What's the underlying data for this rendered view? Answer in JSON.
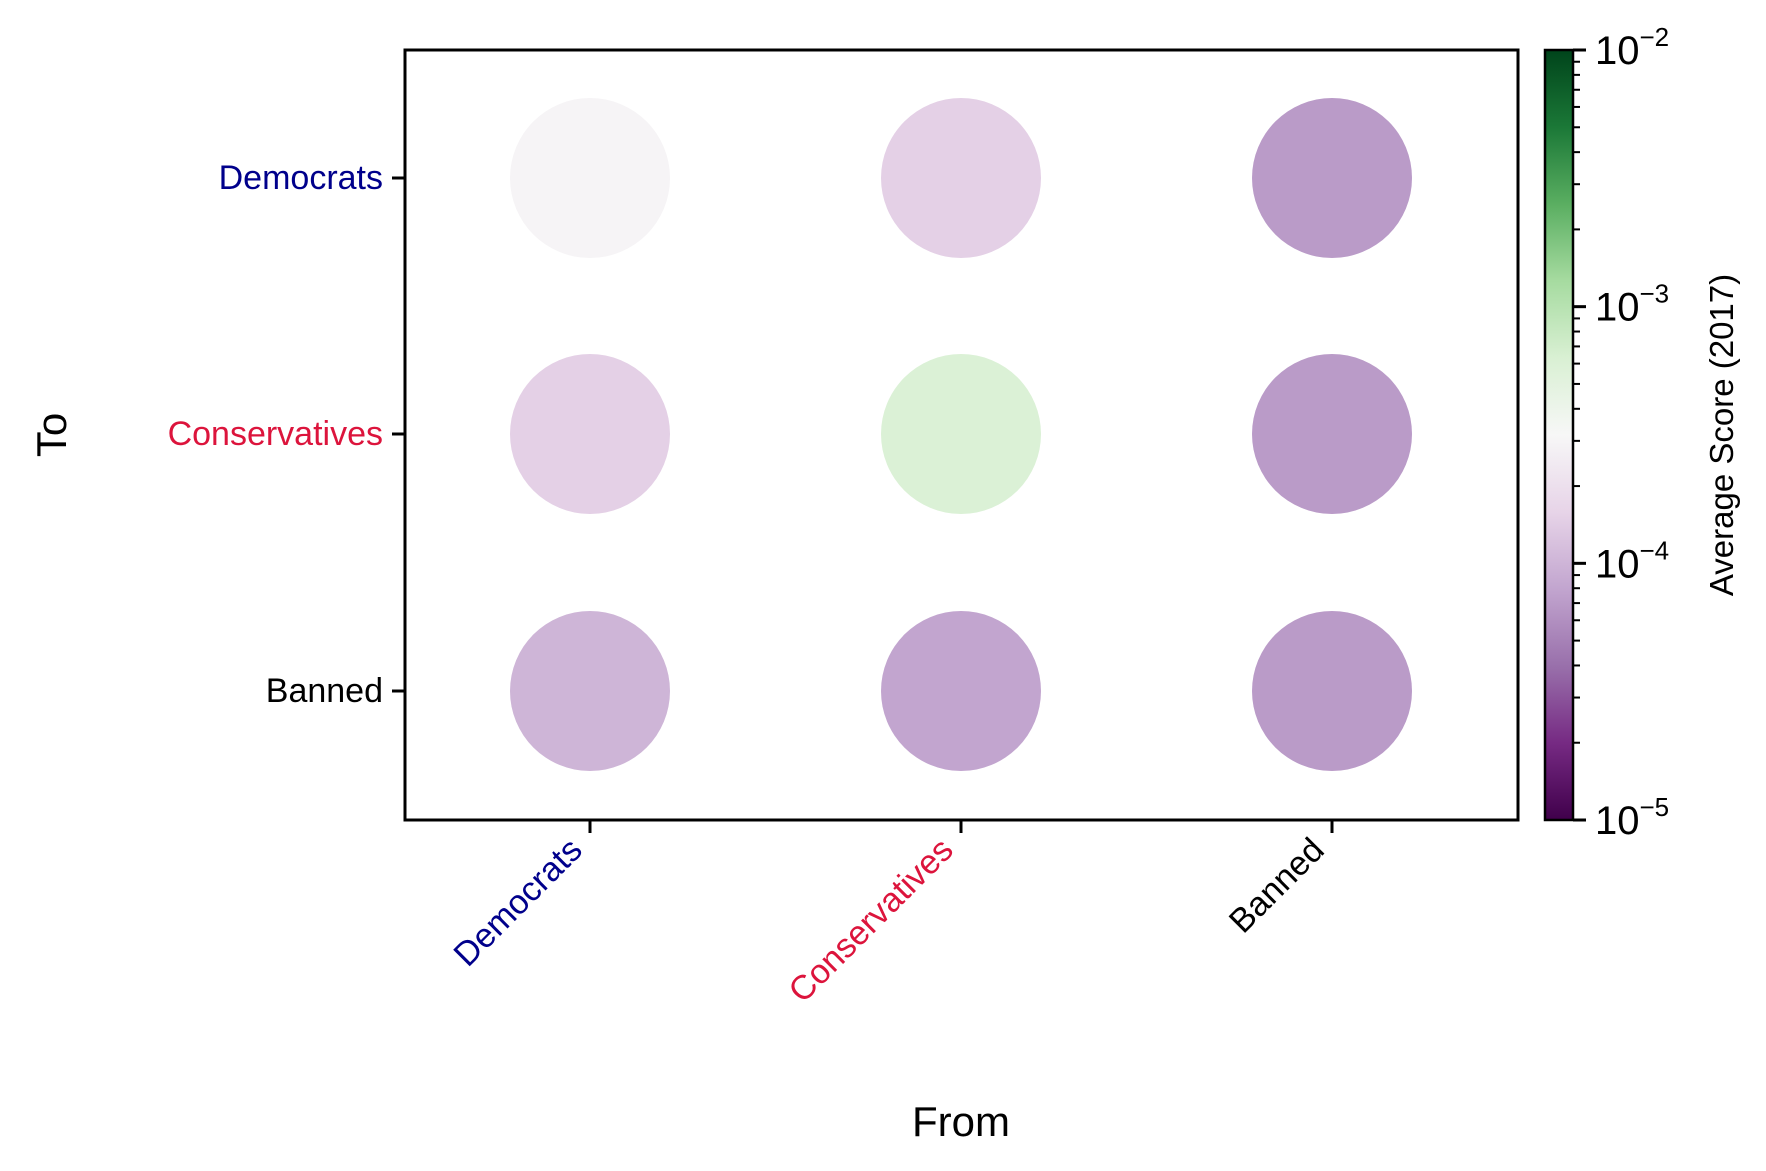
{
  "chart_data": {
    "type": "heatmap",
    "title": "",
    "xlabel": "From",
    "ylabel": "To",
    "x_categories": [
      {
        "label": "Democrats",
        "color": "#00008b"
      },
      {
        "label": "Conservatives",
        "color": "#dc143c"
      },
      {
        "label": "Banned",
        "color": "#000000"
      }
    ],
    "y_categories": [
      {
        "label": "Democrats",
        "color": "#00008b"
      },
      {
        "label": "Conservatives",
        "color": "#dc143c"
      },
      {
        "label": "Banned",
        "color": "#000000"
      }
    ],
    "values": [
      [
        0.0003,
        0.00015,
        7e-05
      ],
      [
        0.00015,
        0.0006,
        7e-05
      ],
      [
        0.0001,
        8e-05,
        7e-05
      ]
    ],
    "values_note_order": "rows = To (Democrats, Conservatives, Banned); columns = From (Democrats, Conservatives, Banned)",
    "colorbar": {
      "label": "Average Score (2017)",
      "scale": "log",
      "colormap": "PRGn",
      "range": [
        1e-05,
        0.01
      ],
      "ticks": [
        {
          "value": 0.01,
          "base": "10",
          "exp": "−2"
        },
        {
          "value": 0.001,
          "base": "10",
          "exp": "−3"
        },
        {
          "value": 0.0001,
          "base": "10",
          "exp": "−4"
        },
        {
          "value": 1e-05,
          "base": "10",
          "exp": "−5"
        }
      ]
    },
    "grid": false
  }
}
